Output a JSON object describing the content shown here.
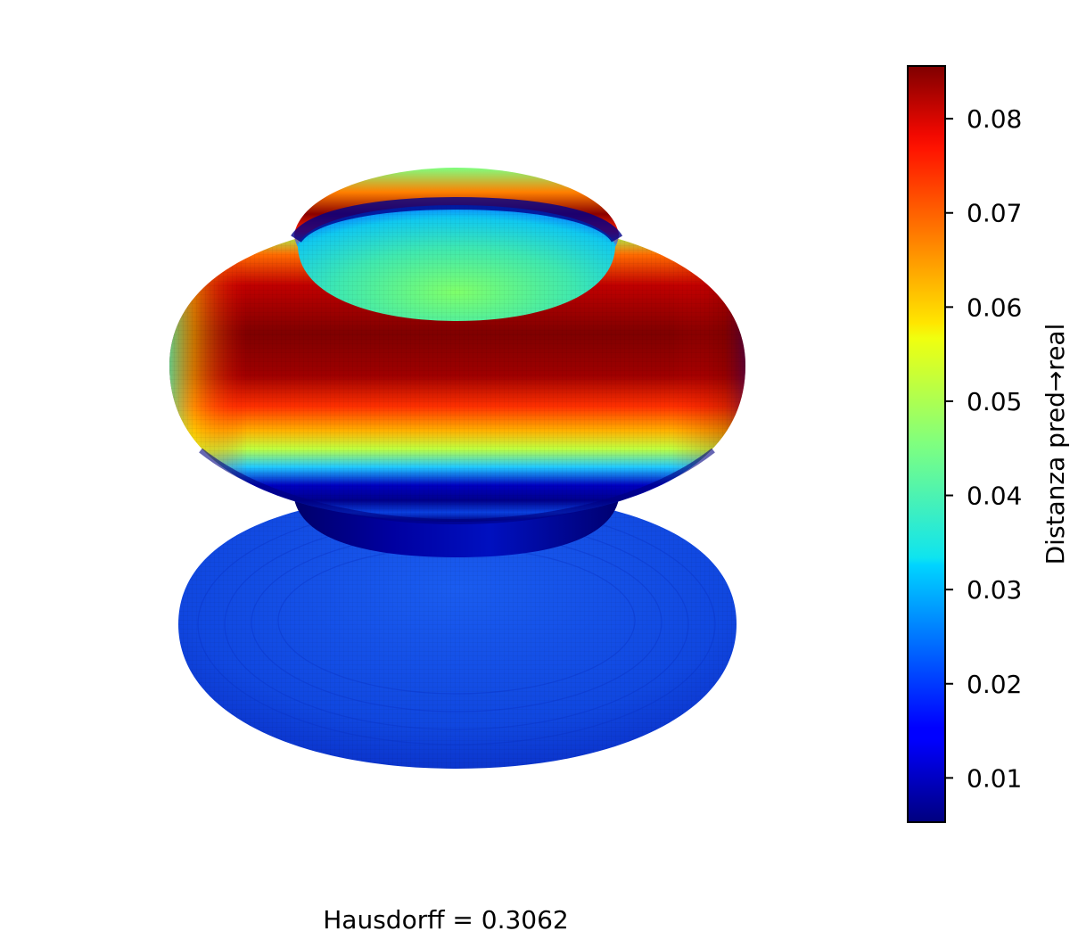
{
  "chart_data": {
    "type": "surface3d",
    "caption": "Hausdorff = 0.3062",
    "colormap": "jet",
    "colorbar": {
      "label": "Distanza pred→real",
      "min": 0.0053,
      "max": 0.0856,
      "ticks": [
        0.01,
        0.02,
        0.03,
        0.04,
        0.05,
        0.06,
        0.07,
        0.08
      ],
      "tick_labels": [
        "0.01",
        "0.02",
        "0.03",
        "0.04",
        "0.05",
        "0.06",
        "0.07",
        "0.08"
      ],
      "position": "right"
    },
    "colors": {
      "low": "#00007f",
      "mid": "#7fff7f",
      "high": "#7f0000",
      "base": "#1047e0"
    }
  }
}
